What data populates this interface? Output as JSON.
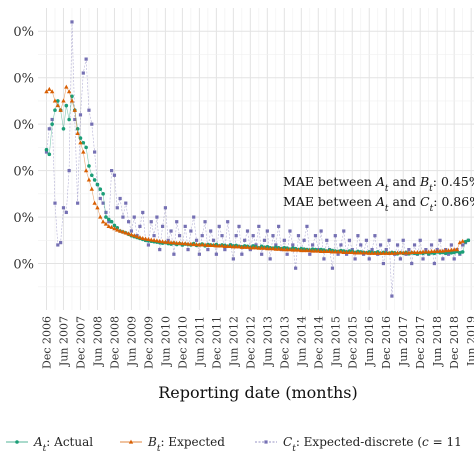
{
  "chart_data": {
    "type": "line",
    "title": "",
    "xlabel": "Reporting date (months)",
    "ylabel": "",
    "x_tick_labels": [
      "Dec 2006",
      "Jun 2007",
      "Dec 2007",
      "Jun 2008",
      "Dec 2008",
      "Jun 2009",
      "Dec 2009",
      "Jun 2010",
      "Dec 2010",
      "Jun 2011",
      "Dec 2011",
      "Jun 2012",
      "Dec 2012",
      "Jun 2013",
      "Dec 2013",
      "Jun 2014",
      "Dec 2014",
      "Jun 2015",
      "Dec 2015",
      "Jun 2016",
      "Dec 2016",
      "Jun 2017",
      "Dec 2017",
      "Jun 2018",
      "Dec 2018",
      "Jun 2019"
    ],
    "x_range": [
      "2006-09",
      "2019-07"
    ],
    "y_tick_labels": [
      "0%",
      "0%",
      "0%",
      "0%",
      "0%",
      "0%"
    ],
    "y_tick_values": [
      0.5,
      0.4,
      0.3,
      0.2,
      0.1,
      0.0
    ],
    "ylim": [
      -0.1,
      0.55
    ],
    "grid": true,
    "legend_placement": "bottom",
    "annotations": [
      {
        "lines": [
          "MAE between ",
          "A",
          "t",
          " and ",
          "B",
          "t",
          ": 0.45%"
        ]
      },
      {
        "lines": [
          "MAE between ",
          "A",
          "t",
          " and ",
          "C",
          "t",
          ": 0.86%"
        ]
      }
    ],
    "series": [
      {
        "name_main": "A",
        "name_sub": "t",
        "name_rest": ": Actual",
        "color": "#1b9e77",
        "marker": "circle",
        "start": "2006-12",
        "values": [
          0.245,
          0.235,
          0.3,
          0.33,
          0.35,
          0.33,
          0.29,
          0.34,
          0.31,
          0.36,
          0.33,
          0.29,
          0.27,
          0.26,
          0.25,
          0.21,
          0.19,
          0.18,
          0.17,
          0.16,
          0.15,
          0.1,
          0.095,
          0.09,
          0.082,
          0.077,
          0.07,
          0.068,
          0.066,
          0.063,
          0.06,
          0.058,
          0.056,
          0.054,
          0.052,
          0.05,
          0.049,
          0.048,
          0.047,
          0.046,
          0.045,
          0.044,
          0.045,
          0.043,
          0.042,
          0.044,
          0.041,
          0.043,
          0.04,
          0.042,
          0.041,
          0.04,
          0.043,
          0.039,
          0.04,
          0.042,
          0.038,
          0.041,
          0.04,
          0.039,
          0.041,
          0.038,
          0.04,
          0.039,
          0.037,
          0.04,
          0.038,
          0.039,
          0.037,
          0.036,
          0.038,
          0.037,
          0.035,
          0.038,
          0.036,
          0.034,
          0.037,
          0.035,
          0.036,
          0.034,
          0.033,
          0.035,
          0.034,
          0.032,
          0.034,
          0.033,
          0.031,
          0.033,
          0.032,
          0.03,
          0.032,
          0.031,
          0.03,
          0.029,
          0.031,
          0.03,
          0.028,
          0.03,
          0.029,
          0.027,
          0.029,
          0.028,
          0.027,
          0.026,
          0.028,
          0.027,
          0.025,
          0.027,
          0.026,
          0.024,
          0.026,
          0.025,
          0.024,
          0.023,
          0.025,
          0.024,
          0.023,
          0.025,
          0.022,
          0.024,
          0.023,
          0.022,
          0.024,
          0.023,
          0.021,
          0.023,
          0.022,
          0.024,
          0.021,
          0.023,
          0.022,
          0.021,
          0.023,
          0.022,
          0.024,
          0.021,
          0.023,
          0.022,
          0.025,
          0.023,
          0.024,
          0.022,
          0.025,
          0.023,
          0.024,
          0.026,
          0.023,
          0.025,
          0.047,
          0.05
        ]
      },
      {
        "name_main": "B",
        "name_sub": "t",
        "name_rest": ": Expected",
        "color": "#d95f02",
        "marker": "triangle",
        "start": "2006-12",
        "values": [
          0.37,
          0.375,
          0.37,
          0.35,
          0.34,
          0.33,
          0.35,
          0.38,
          0.37,
          0.35,
          0.33,
          0.28,
          0.26,
          0.24,
          0.2,
          0.18,
          0.16,
          0.13,
          0.12,
          0.1,
          0.09,
          0.085,
          0.08,
          0.078,
          0.075,
          0.072,
          0.07,
          0.068,
          0.066,
          0.064,
          0.062,
          0.06,
          0.058,
          0.056,
          0.054,
          0.053,
          0.052,
          0.051,
          0.05,
          0.049,
          0.048,
          0.047,
          0.046,
          0.046,
          0.045,
          0.045,
          0.044,
          0.044,
          0.043,
          0.043,
          0.042,
          0.042,
          0.041,
          0.041,
          0.04,
          0.04,
          0.04,
          0.039,
          0.039,
          0.039,
          0.038,
          0.038,
          0.038,
          0.037,
          0.037,
          0.037,
          0.036,
          0.036,
          0.036,
          0.035,
          0.035,
          0.035,
          0.034,
          0.034,
          0.034,
          0.033,
          0.033,
          0.033,
          0.032,
          0.032,
          0.032,
          0.031,
          0.031,
          0.031,
          0.03,
          0.03,
          0.03,
          0.029,
          0.029,
          0.029,
          0.028,
          0.028,
          0.028,
          0.028,
          0.027,
          0.027,
          0.027,
          0.026,
          0.026,
          0.026,
          0.026,
          0.025,
          0.025,
          0.025,
          0.025,
          0.024,
          0.024,
          0.024,
          0.024,
          0.023,
          0.023,
          0.023,
          0.023,
          0.023,
          0.022,
          0.022,
          0.022,
          0.022,
          0.022,
          0.022,
          0.022,
          0.022,
          0.022,
          0.022,
          0.023,
          0.023,
          0.023,
          0.023,
          0.023,
          0.024,
          0.024,
          0.024,
          0.024,
          0.025,
          0.025,
          0.025,
          0.026,
          0.026,
          0.026,
          0.027,
          0.027,
          0.028,
          0.028,
          0.029,
          0.03,
          0.03,
          0.045,
          0.048
        ]
      },
      {
        "name_main": "C",
        "name_sub": "t",
        "name_rest": ": Expected-discrete (",
        "name_c": "c",
        "name_end": " = 11",
        "color": "#7570b3",
        "marker": "square",
        "start": "2006-12",
        "values": [
          0.24,
          0.29,
          0.31,
          0.13,
          0.04,
          0.045,
          0.12,
          0.11,
          0.2,
          0.52,
          0.31,
          0.13,
          0.32,
          0.41,
          0.44,
          0.33,
          0.3,
          0.24,
          0.17,
          0.14,
          0.13,
          0.11,
          0.09,
          0.2,
          0.19,
          0.12,
          0.14,
          0.1,
          0.13,
          0.09,
          0.07,
          0.1,
          0.06,
          0.08,
          0.11,
          0.05,
          0.04,
          0.09,
          0.06,
          0.1,
          0.03,
          0.08,
          0.12,
          0.05,
          0.07,
          0.02,
          0.09,
          0.06,
          0.04,
          0.08,
          0.03,
          0.07,
          0.1,
          0.05,
          0.02,
          0.06,
          0.09,
          0.03,
          0.07,
          0.05,
          0.02,
          0.08,
          0.06,
          0.03,
          0.09,
          0.04,
          0.01,
          0.06,
          0.08,
          0.02,
          0.05,
          0.07,
          0.03,
          0.06,
          0.04,
          0.08,
          0.02,
          0.05,
          0.07,
          0.01,
          0.06,
          0.04,
          0.08,
          0.03,
          0.05,
          0.02,
          0.07,
          0.04,
          -0.01,
          0.06,
          0.03,
          0.05,
          0.08,
          0.02,
          0.04,
          0.06,
          0.03,
          0.07,
          0.01,
          0.05,
          0.03,
          -0.01,
          0.06,
          0.02,
          0.04,
          0.07,
          0.02,
          0.05,
          0.03,
          0.01,
          0.06,
          0.04,
          0.02,
          0.05,
          0.01,
          0.03,
          0.06,
          0.02,
          0.04,
          0.0,
          0.03,
          0.05,
          -0.07,
          0.02,
          0.04,
          0.01,
          0.05,
          0.02,
          0.03,
          0.0,
          0.04,
          0.02,
          0.05,
          0.01,
          0.03,
          0.02,
          0.04,
          0.0,
          0.03,
          0.05,
          0.01,
          0.03,
          0.02,
          0.04,
          0.01,
          0.03,
          0.02,
          0.04,
          0.045,
          0.05
        ]
      }
    ]
  }
}
